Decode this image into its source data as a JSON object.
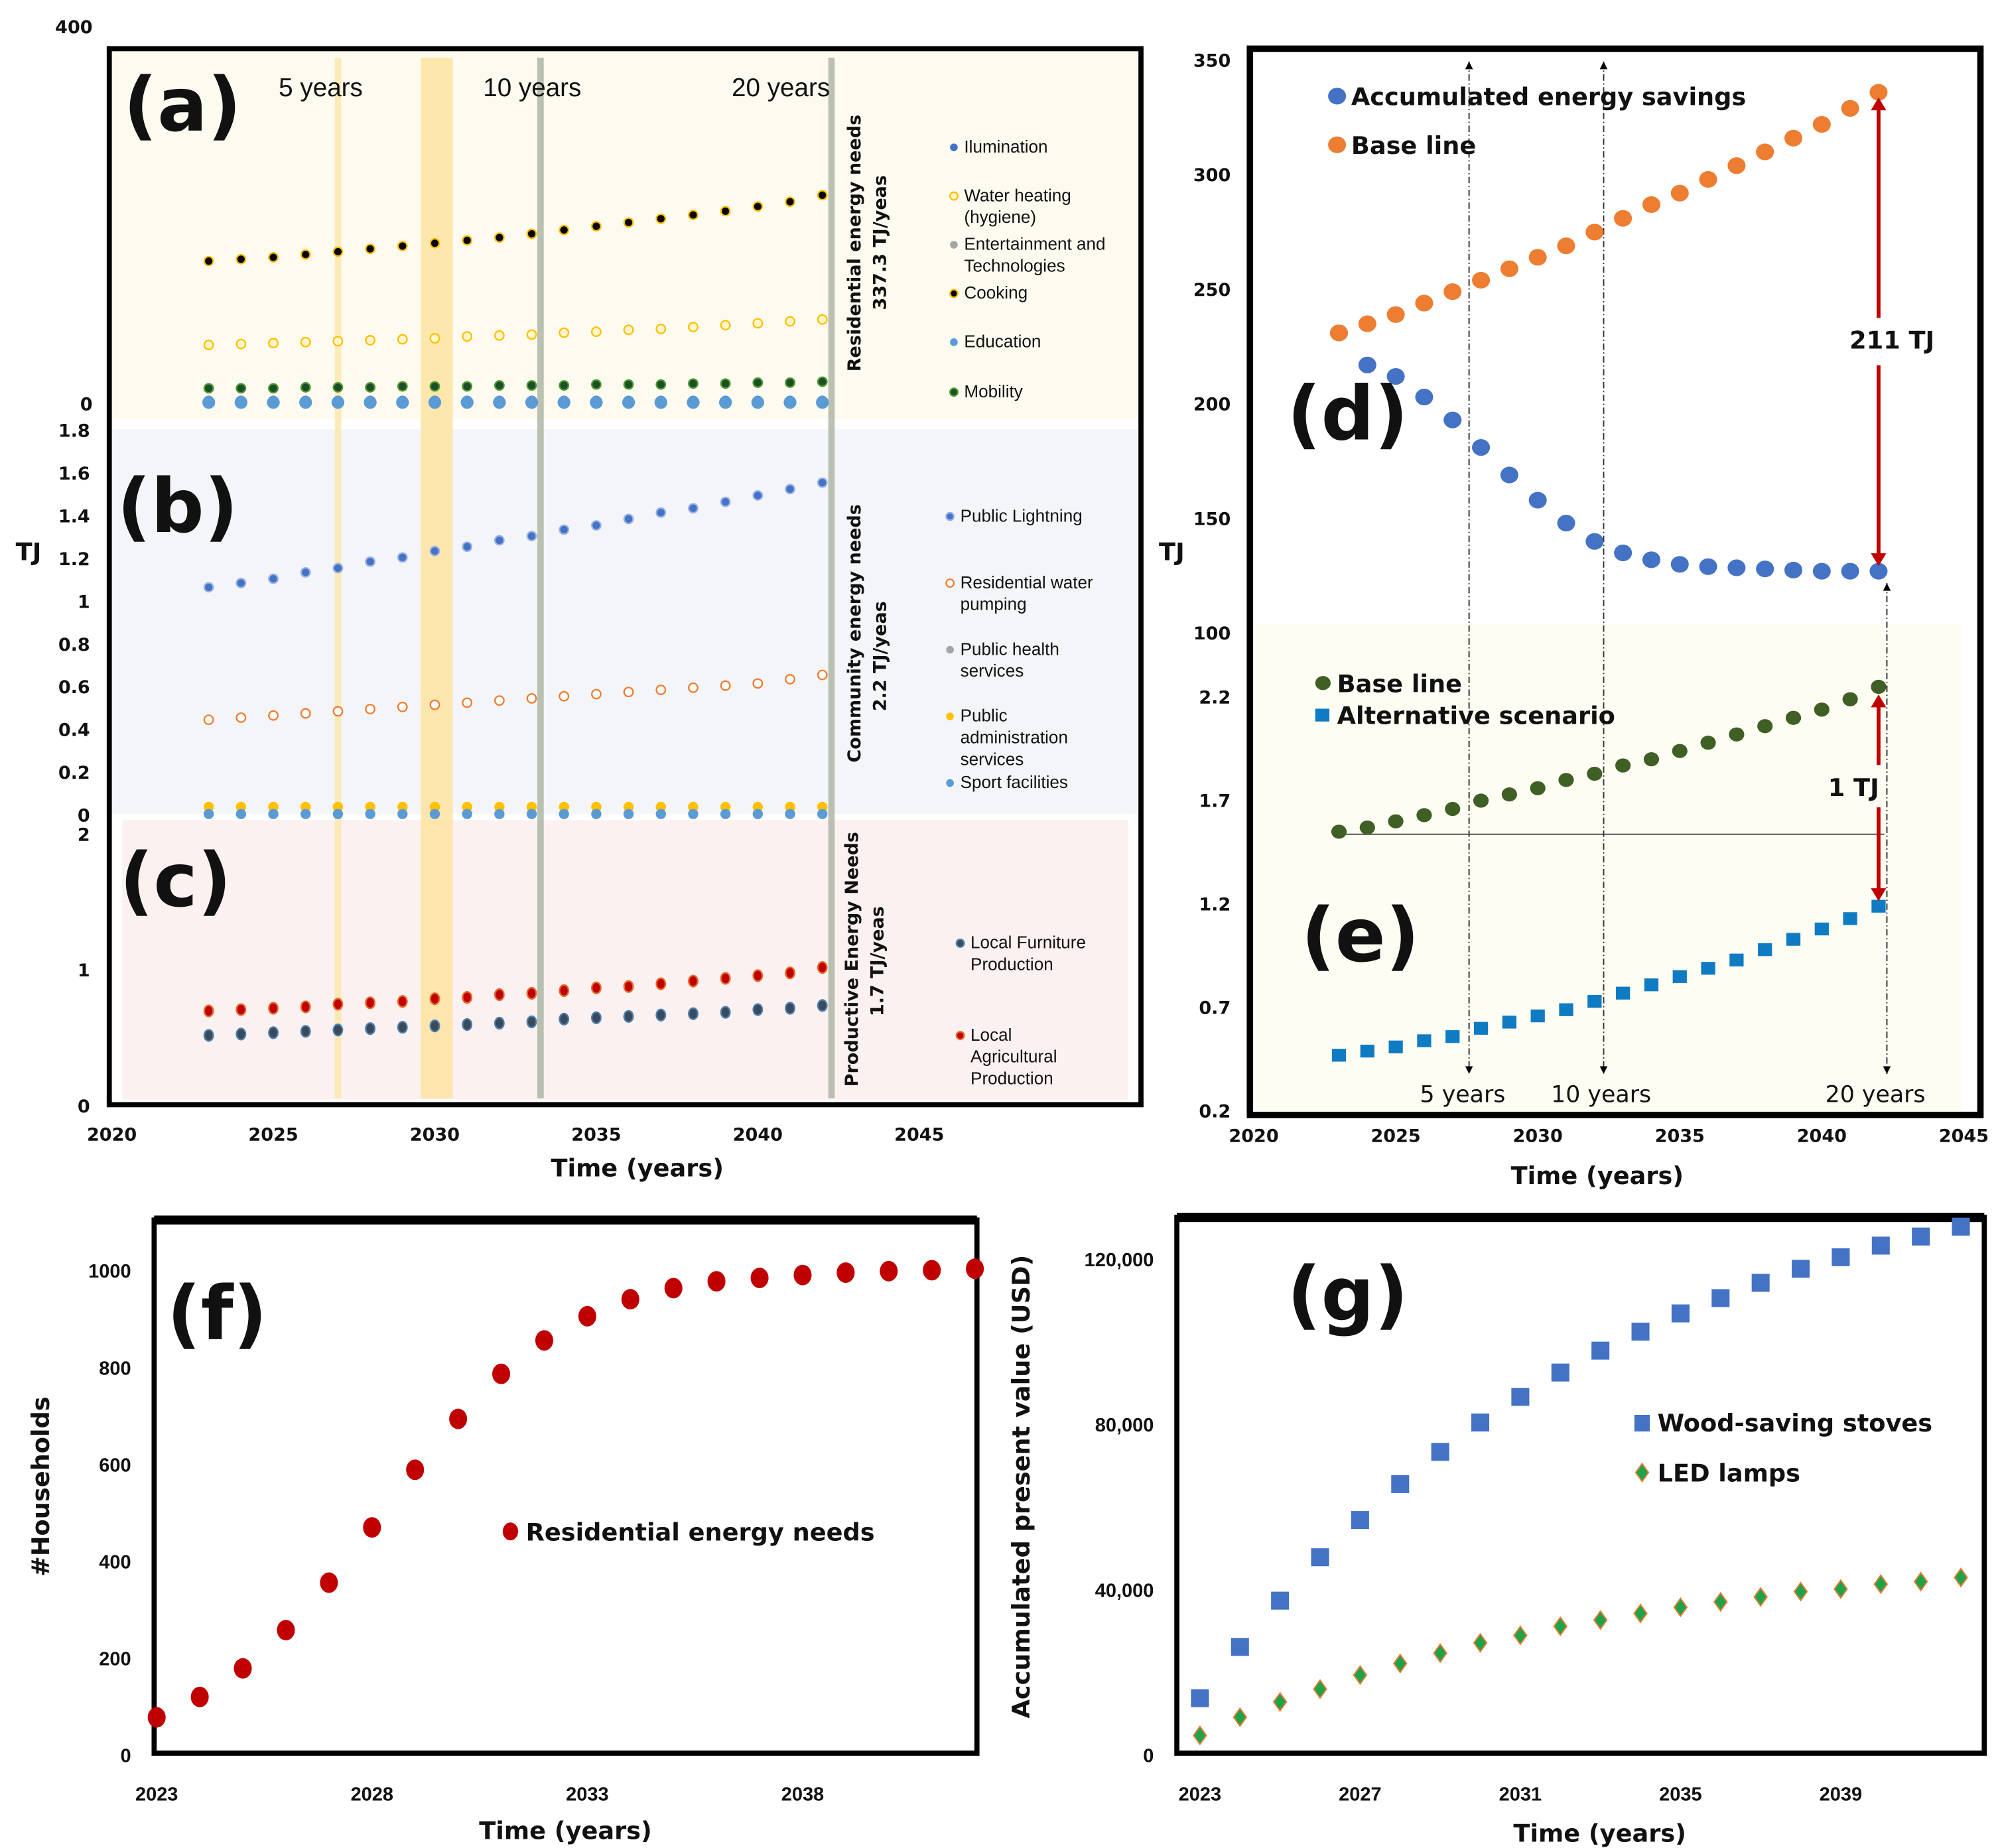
{
  "colors": {
    "blue": "#4472c4",
    "orange": "#ed7d31",
    "yellow": "#ffc000",
    "gray": "#a5a5a5",
    "lightblue": "#5b9bd5",
    "darkgreen": "#1e4d2b",
    "olive": "#3f5f24",
    "teal": "#0f7bc2",
    "red": "#c00000",
    "slate": "#3b4a5a",
    "green": "#1fa34a",
    "arrow": "#c00000"
  },
  "abc": {
    "ylabel": "TJ",
    "xlabel": "Time (years)",
    "x_ticks": [
      "2020",
      "2025",
      "2030",
      "2035",
      "2040",
      "2045"
    ],
    "milestones": [
      "5 years",
      "10 years",
      "20 years"
    ]
  },
  "de": {
    "ylabel": "TJ",
    "xlabel": "Time (years)",
    "x_ticks": [
      "2020",
      "2025",
      "2030",
      "2035",
      "2040",
      "2045"
    ],
    "milestones": [
      "5 years",
      "10 years",
      "20 years"
    ]
  },
  "chart_data": [
    {
      "panel_label": "(a)",
      "type": "scatter",
      "x": [
        2023,
        2024,
        2025,
        2026,
        2027,
        2028,
        2029,
        2030,
        2031,
        2032,
        2033,
        2034,
        2035,
        2036,
        2037,
        2038,
        2039,
        2040,
        2041,
        2042
      ],
      "xlim": [
        2020,
        2045
      ],
      "ylim": [
        0,
        400
      ],
      "y_ticks": [
        "400",
        "0"
      ],
      "side_label": "Residential energy needs",
      "side_value": "337.3 TJ/yeas",
      "series": [
        {
          "name": "Ilumination",
          "color": "#4472c4",
          "values": [
            1,
            1,
            1,
            1,
            1,
            1,
            1,
            1,
            1,
            1,
            1,
            1,
            1,
            1,
            1,
            1,
            1,
            1,
            1,
            1
          ]
        },
        {
          "name": "Water heating (hygiene)",
          "color": "#ffc000",
          "values": [
            61,
            62,
            63,
            64,
            65,
            66,
            67,
            68,
            70,
            71,
            72,
            74,
            75,
            77,
            78,
            80,
            82,
            84,
            86,
            88
          ]
        },
        {
          "name": "Entertainment and Technologies",
          "color": "#a5a5a5",
          "values": [
            1,
            1,
            1,
            1,
            1,
            1,
            1,
            1,
            1,
            1,
            1,
            1,
            1,
            1,
            1,
            1,
            1,
            1,
            1,
            1
          ]
        },
        {
          "name": "Cooking",
          "color": "#000000",
          "values": [
            150,
            152,
            154,
            157,
            160,
            163,
            166,
            169,
            172,
            175,
            179,
            183,
            187,
            191,
            195,
            199,
            203,
            208,
            213,
            220
          ]
        },
        {
          "name": "Education",
          "color": "#5b9bd5",
          "values": [
            0,
            0,
            0,
            0,
            0,
            0,
            0,
            0,
            0,
            0,
            0,
            0,
            0,
            0,
            0,
            0,
            0,
            0,
            0,
            0
          ]
        },
        {
          "name": "Mobility",
          "color": "#1e4d2b",
          "values": [
            15,
            15,
            15,
            16,
            16,
            16,
            17,
            17,
            17,
            18,
            18,
            18,
            19,
            19,
            19,
            20,
            20,
            21,
            21,
            22
          ]
        }
      ]
    },
    {
      "panel_label": "(b)",
      "type": "scatter",
      "x": [
        2023,
        2024,
        2025,
        2026,
        2027,
        2028,
        2029,
        2030,
        2031,
        2032,
        2033,
        2034,
        2035,
        2036,
        2037,
        2038,
        2039,
        2040,
        2041,
        2042
      ],
      "xlim": [
        2020,
        2045
      ],
      "ylim": [
        0,
        1.8
      ],
      "y_ticks": [
        "1.8",
        "1.6",
        "1.4",
        "1.2",
        "1",
        "0.8",
        "0.6",
        "0.4",
        "0.2",
        "0"
      ],
      "side_label": "Community energy needs",
      "side_value": "2.2 TJ/yeas",
      "series": [
        {
          "name": "Public Lightning",
          "color": "#4472c4",
          "values": [
            1.06,
            1.08,
            1.1,
            1.13,
            1.15,
            1.18,
            1.2,
            1.23,
            1.25,
            1.28,
            1.3,
            1.33,
            1.35,
            1.38,
            1.41,
            1.43,
            1.46,
            1.49,
            1.52,
            1.55
          ]
        },
        {
          "name": "Residential water pumping",
          "color": "#ed7d31",
          "values": [
            0.44,
            0.45,
            0.46,
            0.47,
            0.48,
            0.49,
            0.5,
            0.51,
            0.52,
            0.53,
            0.54,
            0.55,
            0.56,
            0.57,
            0.58,
            0.59,
            0.6,
            0.61,
            0.63,
            0.65
          ]
        },
        {
          "name": "Public health services",
          "color": "#a5a5a5",
          "values": [
            0.01,
            0.01,
            0.01,
            0.01,
            0.01,
            0.01,
            0.01,
            0.01,
            0.01,
            0.01,
            0.01,
            0.01,
            0.01,
            0.01,
            0.01,
            0.01,
            0.01,
            0.01,
            0.01,
            0.01
          ]
        },
        {
          "name": "Public administration services",
          "color": "#ffc000",
          "values": [
            0.02,
            0.02,
            0.02,
            0.02,
            0.02,
            0.02,
            0.02,
            0.02,
            0.02,
            0.02,
            0.02,
            0.02,
            0.02,
            0.02,
            0.02,
            0.02,
            0.02,
            0.02,
            0.02,
            0.02
          ]
        },
        {
          "name": "Sport facilities",
          "color": "#5b9bd5",
          "values": [
            0.005,
            0.005,
            0.005,
            0.005,
            0.005,
            0.005,
            0.005,
            0.005,
            0.005,
            0.005,
            0.005,
            0.005,
            0.005,
            0.005,
            0.005,
            0.005,
            0.005,
            0.005,
            0.005,
            0.005
          ]
        }
      ]
    },
    {
      "panel_label": "(c)",
      "type": "scatter",
      "x": [
        2023,
        2024,
        2025,
        2026,
        2027,
        2028,
        2029,
        2030,
        2031,
        2032,
        2033,
        2034,
        2035,
        2036,
        2037,
        2038,
        2039,
        2040,
        2041,
        2042
      ],
      "xlim": [
        2020,
        2045
      ],
      "ylim": [
        0,
        2
      ],
      "y_ticks": [
        "2",
        "1",
        "0"
      ],
      "side_label": "Productive Energy Needs",
      "side_value": "1.7 TJ/yeas",
      "series": [
        {
          "name": "Local Furniture Production",
          "color": "#3b4a5a",
          "values": [
            0.51,
            0.52,
            0.53,
            0.54,
            0.55,
            0.56,
            0.57,
            0.58,
            0.59,
            0.6,
            0.61,
            0.63,
            0.64,
            0.65,
            0.66,
            0.67,
            0.68,
            0.7,
            0.71,
            0.73
          ]
        },
        {
          "name": "Local Agricultural Production",
          "color": "#c00000",
          "values": [
            0.69,
            0.7,
            0.71,
            0.72,
            0.74,
            0.75,
            0.76,
            0.78,
            0.79,
            0.81,
            0.82,
            0.84,
            0.86,
            0.87,
            0.89,
            0.91,
            0.93,
            0.95,
            0.97,
            1.01
          ]
        }
      ]
    },
    {
      "panel_label": "(d)",
      "type": "scatter",
      "x": [
        2023,
        2024,
        2025,
        2026,
        2027,
        2028,
        2029,
        2030,
        2031,
        2032,
        2033,
        2034,
        2035,
        2036,
        2037,
        2038,
        2039,
        2040,
        2041,
        2042
      ],
      "xlim": [
        2020,
        2045
      ],
      "ylim": [
        100,
        350
      ],
      "y_ticks": [
        "350",
        "300",
        "250",
        "200",
        "150",
        "100"
      ],
      "annotation": "211 TJ",
      "series": [
        {
          "name": "Accumulated energy savings",
          "color": "#4472c4",
          "values": [
            231,
            217,
            212,
            203,
            193,
            181,
            169,
            158,
            148,
            140,
            135,
            132,
            130,
            129,
            128.5,
            128,
            127.5,
            127,
            127,
            127
          ]
        },
        {
          "name": "Base line",
          "color": "#ed7d31",
          "values": [
            231,
            235,
            239,
            244,
            249,
            254,
            259,
            264,
            269,
            275,
            281,
            287,
            292,
            298,
            304,
            310,
            316,
            322,
            329,
            336
          ]
        }
      ]
    },
    {
      "panel_label": "(e)",
      "type": "scatter",
      "x": [
        2023,
        2024,
        2025,
        2026,
        2027,
        2028,
        2029,
        2030,
        2031,
        2032,
        2033,
        2034,
        2035,
        2036,
        2037,
        2038,
        2039,
        2040,
        2041,
        2042
      ],
      "xlim": [
        2020,
        2045
      ],
      "ylim": [
        0.2,
        2.2
      ],
      "y_ticks": [
        "2.2",
        "1.7",
        "1.2",
        "0.7",
        "0.2"
      ],
      "annotation": "1 TJ",
      "series": [
        {
          "name": "Base line",
          "color": "#3f5f24",
          "values": [
            1.55,
            1.57,
            1.6,
            1.63,
            1.66,
            1.7,
            1.73,
            1.76,
            1.8,
            1.83,
            1.87,
            1.9,
            1.94,
            1.98,
            2.02,
            2.06,
            2.1,
            2.14,
            2.19,
            2.25
          ]
        },
        {
          "name": "Alternative scenario",
          "color": "#0f7bc2",
          "values": [
            0.47,
            0.49,
            0.51,
            0.54,
            0.56,
            0.6,
            0.63,
            0.66,
            0.69,
            0.73,
            0.77,
            0.81,
            0.85,
            0.89,
            0.93,
            0.98,
            1.03,
            1.08,
            1.13,
            1.19
          ]
        }
      ]
    },
    {
      "panel_label": "(f)",
      "type": "scatter",
      "x": [
        2023,
        2024,
        2025,
        2026,
        2027,
        2028,
        2029,
        2030,
        2031,
        2032,
        2033,
        2034,
        2035,
        2036,
        2037,
        2038,
        2039,
        2040,
        2041,
        2042
      ],
      "xlabel": "Time (years)",
      "ylabel": "#Households",
      "xlim": [
        2023,
        2042
      ],
      "ylim": [
        0,
        1000
      ],
      "x_ticks": [
        "2023",
        "2028",
        "2033",
        "2038"
      ],
      "y_ticks": [
        "1000",
        "800",
        "600",
        "400",
        "200",
        "0"
      ],
      "series": [
        {
          "name": "Residential energy needs",
          "color": "#c00000",
          "values": [
            74,
            116,
            175,
            254,
            352,
            466,
            585,
            690,
            783,
            852,
            902,
            937,
            960,
            974,
            981,
            987,
            992,
            995,
            997,
            1000
          ]
        }
      ]
    },
    {
      "panel_label": "(g)",
      "type": "scatter",
      "x": [
        2023,
        2024,
        2025,
        2026,
        2027,
        2028,
        2029,
        2030,
        2031,
        2032,
        2033,
        2034,
        2035,
        2036,
        2037,
        2038,
        2039,
        2040,
        2041,
        2042
      ],
      "xlabel": "Time (years)",
      "ylabel": "Accumulated present value (USD)",
      "xlim": [
        2023,
        2042
      ],
      "ylim": [
        0,
        120000
      ],
      "x_ticks": [
        "2023",
        "2027",
        "2031",
        "2035",
        "2039"
      ],
      "y_ticks": [
        "120,000",
        "80,000",
        "40,000",
        "0"
      ],
      "series": [
        {
          "name": "Wood-saving stoves",
          "color": "#4472c4",
          "values": [
            13300,
            25700,
            36900,
            47400,
            56400,
            65100,
            72900,
            80000,
            86200,
            92100,
            97400,
            102000,
            106400,
            110100,
            113800,
            117200,
            120000,
            122800,
            125000,
            127400
          ]
        },
        {
          "name": "LED lamps",
          "color": "#1fa34a",
          "values": [
            4300,
            8700,
            12400,
            15500,
            18900,
            21700,
            24200,
            26700,
            28500,
            30700,
            32200,
            33800,
            35300,
            36600,
            37800,
            39100,
            39700,
            40900,
            41500,
            42500
          ]
        }
      ]
    }
  ]
}
